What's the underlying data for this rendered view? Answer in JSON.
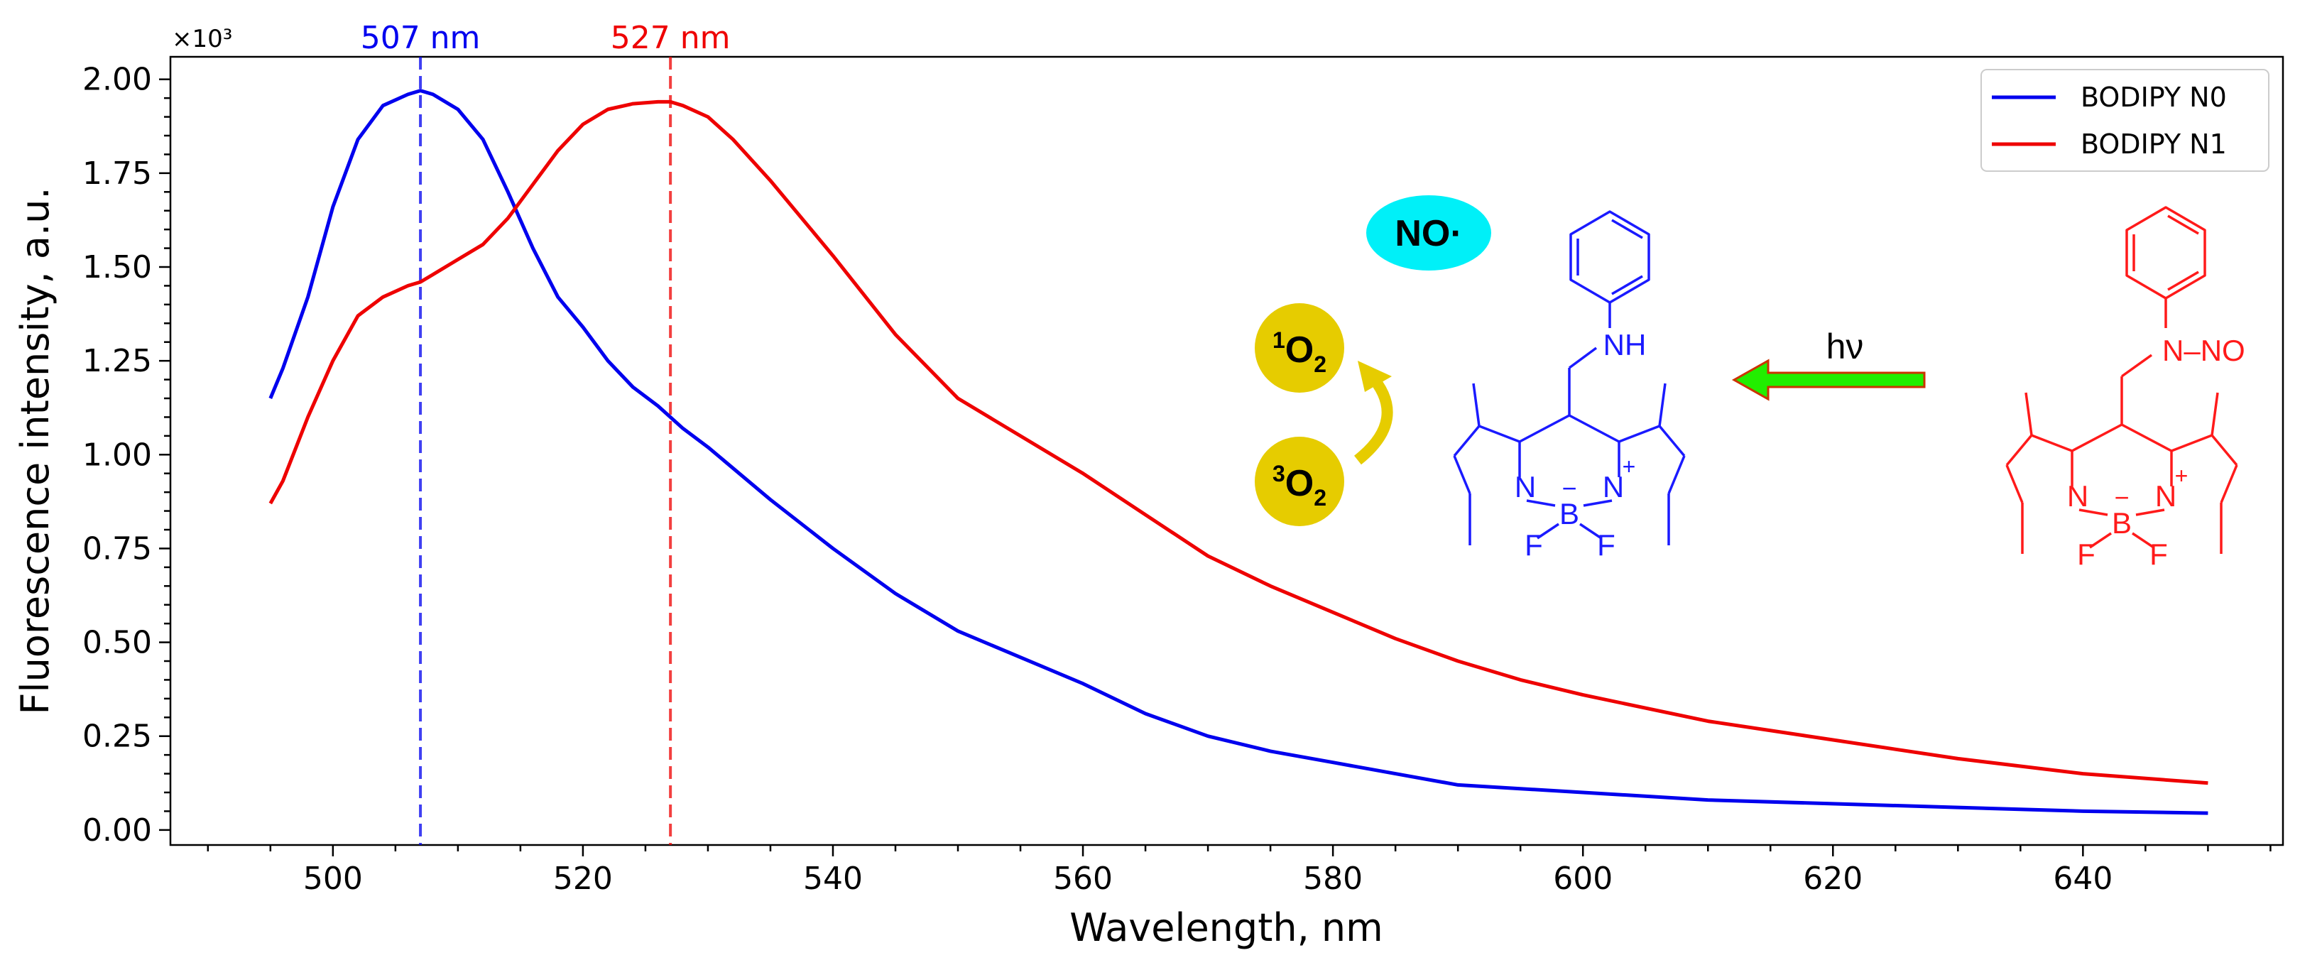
{
  "chart_data": {
    "type": "line",
    "title": "",
    "xlabel": "Wavelength, nm",
    "ylabel": "Fluorescence intensity, a.u.",
    "y_multiplier": "×10³",
    "xlim": [
      487,
      656
    ],
    "ylim": [
      -0.04,
      2.06
    ],
    "x_ticks": [
      500,
      520,
      540,
      560,
      580,
      600,
      620,
      640
    ],
    "y_ticks": [
      0.0,
      0.25,
      0.5,
      0.75,
      1.0,
      1.25,
      1.5,
      1.75,
      2.0
    ],
    "grid": false,
    "legend_position": "top-right",
    "series": [
      {
        "name": "BODIPY N0",
        "color": "#0000ee",
        "x": [
          495,
          496,
          498,
          500,
          502,
          504,
          506,
          507,
          508,
          510,
          512,
          514,
          516,
          518,
          520,
          522,
          524,
          526,
          528,
          530,
          535,
          540,
          545,
          550,
          555,
          560,
          565,
          570,
          575,
          580,
          585,
          590,
          595,
          600,
          610,
          620,
          630,
          640,
          650
        ],
        "y": [
          1.15,
          1.23,
          1.42,
          1.66,
          1.84,
          1.93,
          1.96,
          1.97,
          1.96,
          1.92,
          1.84,
          1.7,
          1.55,
          1.42,
          1.34,
          1.25,
          1.18,
          1.13,
          1.07,
          1.02,
          0.88,
          0.75,
          0.63,
          0.53,
          0.46,
          0.39,
          0.31,
          0.25,
          0.21,
          0.18,
          0.15,
          0.12,
          0.11,
          0.1,
          0.08,
          0.07,
          0.06,
          0.05,
          0.045
        ]
      },
      {
        "name": "BODIPY N1",
        "color": "#ee0000",
        "x": [
          495,
          496,
          498,
          500,
          502,
          504,
          506,
          507,
          508,
          510,
          512,
          514,
          516,
          518,
          520,
          522,
          524,
          526,
          527,
          528,
          530,
          532,
          535,
          540,
          545,
          550,
          555,
          560,
          565,
          570,
          575,
          580,
          585,
          590,
          595,
          600,
          610,
          620,
          630,
          640,
          650
        ],
        "y": [
          0.87,
          0.93,
          1.1,
          1.25,
          1.37,
          1.42,
          1.45,
          1.46,
          1.48,
          1.52,
          1.56,
          1.63,
          1.72,
          1.81,
          1.88,
          1.92,
          1.935,
          1.94,
          1.94,
          1.93,
          1.9,
          1.84,
          1.73,
          1.53,
          1.32,
          1.15,
          1.05,
          0.95,
          0.84,
          0.73,
          0.65,
          0.58,
          0.51,
          0.45,
          0.4,
          0.36,
          0.29,
          0.24,
          0.19,
          0.15,
          0.125
        ]
      }
    ],
    "annotations": [
      {
        "label": "507 nm",
        "x": 507,
        "color": "#0000ee"
      },
      {
        "label": "527 nm",
        "x": 527,
        "color": "#ee0000"
      }
    ]
  },
  "scheme": {
    "radical_label": "NO·",
    "singlet_sup": "1",
    "triplet_sup": "3",
    "oxygen_label": "O",
    "oxygen_sub": "2",
    "light_label": "hν",
    "n0_nh": "NH",
    "n1_nno": "N–NO",
    "n_left": "N",
    "n_right": "N",
    "boron": "B",
    "minus": "−",
    "plus": "+",
    "fluorine": "F",
    "colors": {
      "radical_fill": "#00f0f8",
      "oxygen_fill": "#e6cc00",
      "arrow_fill": "#22ee00",
      "arrow_stroke": "#cc3300",
      "n0_color": "#1a1aff",
      "n1_color": "#ff1a1a"
    }
  }
}
